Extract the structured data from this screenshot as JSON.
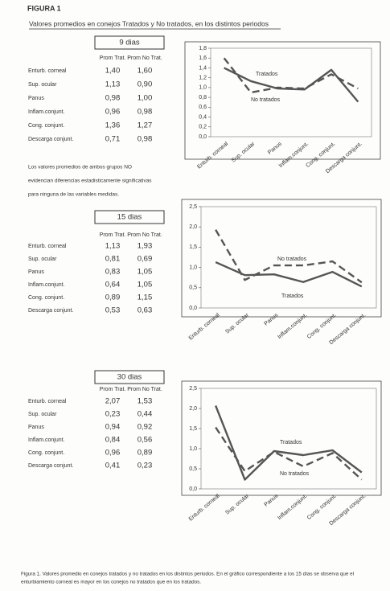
{
  "figure_label": "FIGURA 1",
  "title": "Valores promedios en conejos Tratados y No tratados, en los distintos periodos",
  "tables": [
    {
      "title": "9 dias",
      "header": [
        "Prom Trat.",
        "Prom No Trat."
      ],
      "rows": [
        [
          "Enturb. corneal",
          "1,40",
          "1,60"
        ],
        [
          "Sup. ocular",
          "1,13",
          "0,90"
        ],
        [
          "Panus",
          "0,98",
          "1,00"
        ],
        [
          "Inflam.conjunt.",
          "0,96",
          "0,98"
        ],
        [
          "Cong. conjunt.",
          "1,36",
          "1,27"
        ],
        [
          "Descarga conjunt.",
          "0,71",
          "0,98"
        ]
      ]
    },
    {
      "title": "15 dias",
      "header": [
        "Prom Trat.",
        "Prom No Trat."
      ],
      "rows": [
        [
          "Enturb. corneal",
          "1,13",
          "1,93"
        ],
        [
          "Sup. ocular",
          "0,81",
          "0,69"
        ],
        [
          "Panus",
          "0,83",
          "1,05"
        ],
        [
          "Inflam.conjunt.",
          "0,64",
          "1,05"
        ],
        [
          "Cong. conjunt.",
          "0,89",
          "1,15"
        ],
        [
          "Descarga conjunt.",
          "0,53",
          "0,63"
        ]
      ]
    },
    {
      "title": "30 dias",
      "header": [
        "Prom Trat.",
        "Prom No Trat."
      ],
      "rows": [
        [
          "Enturb. corneal",
          "2,07",
          "1,53"
        ],
        [
          "Sup. ocular",
          "0,23",
          "0,44"
        ],
        [
          "Panus",
          "0,94",
          "0,92"
        ],
        [
          "Inflam.conjunt.",
          "0,84",
          "0,56"
        ],
        [
          "Cong. conjunt.",
          "0,96",
          "0,89"
        ],
        [
          "Descarga conjunt.",
          "0,41",
          "0,23"
        ]
      ]
    }
  ],
  "note_lines": [
    "Los valores promedios de ambos grupos NO",
    "evidencian diferencias estadisticamente significativas",
    "para ninguna de las variables medidas."
  ],
  "chart_data": [
    {
      "type": "line",
      "categories": [
        "Enturb. corneal",
        "Sup. ocular",
        "Panus",
        "Inflam.conjunt.",
        "Cong. conjunt.",
        "Descarga conjunt."
      ],
      "series": [
        {
          "name": "Tratados",
          "color": "#555555",
          "values": [
            1.4,
            1.13,
            0.98,
            0.96,
            1.36,
            0.71
          ]
        },
        {
          "name": "No tratados",
          "color": "#555555",
          "dashed": true,
          "values": [
            1.6,
            0.9,
            1.0,
            0.98,
            1.27,
            0.98
          ]
        }
      ],
      "ylim": [
        0,
        1.8
      ],
      "yticks": [
        {
          "value": 0,
          "label": "0,0"
        },
        {
          "value": 0.2,
          "label": "0,2"
        },
        {
          "value": 0.4,
          "label": "0,4"
        },
        {
          "value": 0.6,
          "label": "0,6"
        },
        {
          "value": 0.8,
          "label": "0,8"
        },
        {
          "value": 1.0,
          "label": "1,0"
        },
        {
          "value": 1.2,
          "label": "1,2"
        },
        {
          "value": 1.4,
          "label": "1,4"
        },
        {
          "value": 1.6,
          "label": "1,6"
        },
        {
          "value": 1.8,
          "label": "1,8"
        }
      ]
    },
    {
      "type": "line",
      "categories": [
        "Enturb. corneal",
        "Sup. ocular",
        "Panus",
        "Inflam.conjunt.",
        "Cong. conjunt.",
        "Descarga conjunt."
      ],
      "series": [
        {
          "name": "Tratados",
          "color": "#555555",
          "values": [
            1.13,
            0.81,
            0.83,
            0.64,
            0.89,
            0.53
          ]
        },
        {
          "name": "No tratados",
          "color": "#555555",
          "dashed": true,
          "values": [
            1.93,
            0.69,
            1.05,
            1.05,
            1.15,
            0.63
          ]
        }
      ],
      "ylim": [
        0,
        2.5
      ],
      "yticks": [
        {
          "value": 0,
          "label": "0,0"
        },
        {
          "value": 0.5,
          "label": "0,5"
        },
        {
          "value": 1.0,
          "label": "1,0"
        },
        {
          "value": 1.5,
          "label": "1,5"
        },
        {
          "value": 2.0,
          "label": "2,0"
        },
        {
          "value": 2.5,
          "label": "2,5"
        }
      ]
    },
    {
      "type": "line",
      "categories": [
        "Enturb. corneal",
        "Sup. ocular",
        "Panus",
        "Inflam.conjunt.",
        "Cong. conjunt.",
        "Descarga conjunt."
      ],
      "series": [
        {
          "name": "Tratados",
          "color": "#555555",
          "values": [
            2.07,
            0.23,
            0.94,
            0.84,
            0.96,
            0.41
          ]
        },
        {
          "name": "No tratados",
          "color": "#555555",
          "dashed": true,
          "values": [
            1.53,
            0.44,
            0.92,
            0.56,
            0.89,
            0.23
          ]
        }
      ],
      "ylim": [
        0,
        2.5
      ],
      "yticks": [
        {
          "value": 0,
          "label": "0,0"
        },
        {
          "value": 0.5,
          "label": "0,5"
        },
        {
          "value": 1.0,
          "label": "1,0"
        },
        {
          "value": 1.5,
          "label": "1,5"
        },
        {
          "value": 2.0,
          "label": "2,0"
        },
        {
          "value": 2.5,
          "label": "2,5"
        }
      ]
    }
  ],
  "caption_lines": [
    "Figura 1. Valores promedio en conejos tratados y no tratados en los distintos periodos. En el gráfico correspondiente a los 15 días se observa que el",
    "enturbiamiento corneal es mayor en los conejos no tratados que en los tratados."
  ]
}
